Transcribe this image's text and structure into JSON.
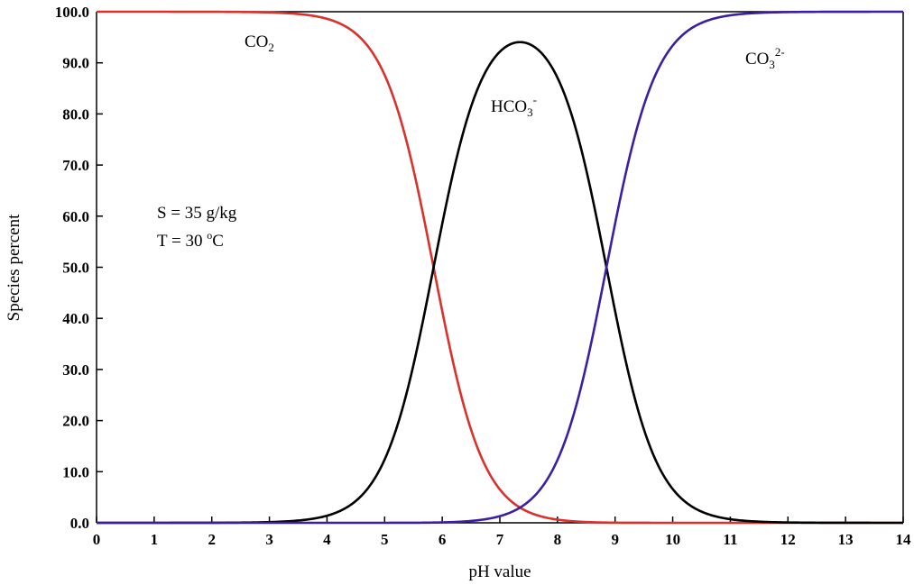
{
  "chart_data": {
    "type": "line",
    "xlabel": "pH value",
    "ylabel": "Species percent",
    "xlim": [
      0,
      14
    ],
    "ylim": [
      0,
      100
    ],
    "xticks": [
      "0",
      "1",
      "2",
      "3",
      "4",
      "5",
      "6",
      "7",
      "8",
      "9",
      "10",
      "11",
      "12",
      "13",
      "14"
    ],
    "yticks": [
      "0.0",
      "10.0",
      "20.0",
      "30.0",
      "40.0",
      "50.0",
      "60.0",
      "70.0",
      "80.0",
      "90.0",
      "100.0"
    ],
    "grid": false,
    "pK1": 5.85,
    "pK2": 8.85,
    "series": [
      {
        "name": "CO2",
        "label_main": "CO",
        "label_sub": "2",
        "label_sup": "",
        "color": "#d9312b"
      },
      {
        "name": "HCO3-",
        "label_main": "HCO",
        "label_sub": "3",
        "label_sup": "-",
        "color": "#000000"
      },
      {
        "name": "CO3 2-",
        "label_main": "CO",
        "label_sub": "3",
        "label_sup": "2-",
        "color": "#3b1fa0"
      }
    ],
    "annotations": {
      "salinity": "S = 35 g/kg",
      "temp_prefix": "T = 30 ",
      "temp_degree": "o",
      "temp_unit": "C"
    }
  }
}
